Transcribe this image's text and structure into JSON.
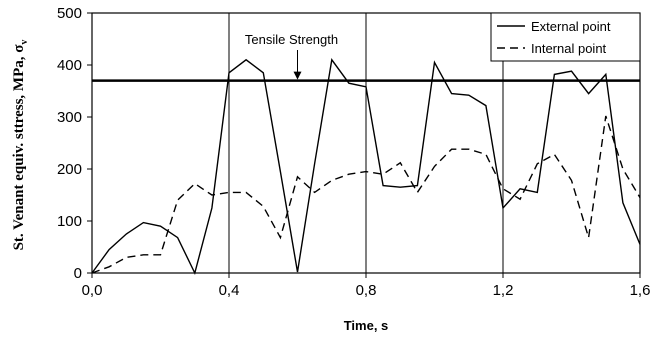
{
  "chart_data": {
    "type": "line",
    "xlabel": "Time, s",
    "ylabel": "St. Venant equiv. sttress, MPa, σ",
    "ylabel_subscript": "v",
    "xlim": [
      0,
      1.6
    ],
    "ylim": [
      0,
      500
    ],
    "xticks": [
      "0,0",
      "0,4",
      "0,8",
      "1,2",
      "1,6"
    ],
    "xtick_values": [
      0,
      0.4,
      0.8,
      1.2,
      1.6
    ],
    "yticks": [
      "0",
      "100",
      "200",
      "300",
      "400",
      "500"
    ],
    "ytick_values": [
      0,
      100,
      200,
      300,
      400,
      500
    ],
    "vertical_grid": true,
    "horizontal_grid": false,
    "legend_position": "top-right",
    "annotation": {
      "text": "Tensile Strength",
      "x": 0.6,
      "y": 370
    },
    "reference_line": {
      "name": "Tensile Strength",
      "y": 370
    },
    "series": [
      {
        "name": "External point",
        "style": "solid",
        "x": [
          0,
          0.05,
          0.1,
          0.15,
          0.2,
          0.25,
          0.3,
          0.35,
          0.4,
          0.45,
          0.5,
          0.55,
          0.6,
          0.65,
          0.7,
          0.75,
          0.8,
          0.85,
          0.9,
          0.95,
          1.0,
          1.05,
          1.1,
          1.15,
          1.2,
          1.25,
          1.3,
          1.35,
          1.4,
          1.45,
          1.5,
          1.55,
          1.6
        ],
        "y": [
          0,
          45,
          75,
          97,
          90,
          68,
          0,
          125,
          385,
          410,
          385,
          195,
          2,
          210,
          410,
          365,
          358,
          168,
          165,
          168,
          405,
          345,
          342,
          322,
          125,
          162,
          155,
          382,
          388,
          345,
          382,
          135,
          55
        ]
      },
      {
        "name": "Internal point",
        "style": "dashed",
        "x": [
          0,
          0.05,
          0.1,
          0.15,
          0.2,
          0.25,
          0.3,
          0.35,
          0.4,
          0.45,
          0.5,
          0.55,
          0.6,
          0.65,
          0.7,
          0.75,
          0.8,
          0.85,
          0.9,
          0.95,
          1.0,
          1.05,
          1.1,
          1.15,
          1.2,
          1.25,
          1.3,
          1.35,
          1.4,
          1.45,
          1.5,
          1.55,
          1.6
        ],
        "y": [
          0,
          12,
          30,
          35,
          35,
          140,
          172,
          150,
          155,
          155,
          128,
          68,
          185,
          155,
          178,
          190,
          195,
          190,
          212,
          155,
          205,
          238,
          238,
          228,
          162,
          142,
          210,
          228,
          178,
          68,
          302,
          200,
          145
        ]
      }
    ]
  }
}
